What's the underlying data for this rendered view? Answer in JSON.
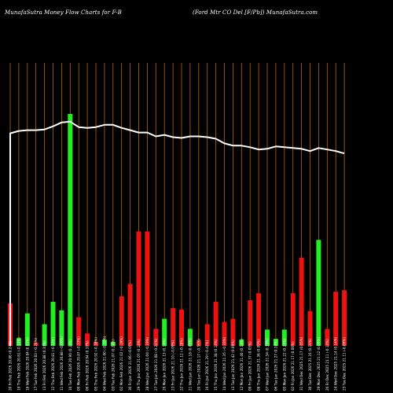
{
  "header": {
    "left_title": "MunafaSutra  Money Flow  Charts for F-B",
    "right_title": "(Ford Mtr CO Del [F/Pb]) MunafaSutra.com"
  },
  "colors": {
    "background": "#000000",
    "grid": "#b8650d",
    "up": "#22ee22",
    "down": "#ee1111",
    "line": "#ffffff"
  },
  "chart_data": {
    "type": "bar",
    "title": "MunafaSutra  Money Flow  Charts for F-B",
    "subtitle": "(Ford Mtr CO Del [F/Pb]) MunafaSutra.com",
    "categories": [
      "20 Fri Feb 2026 20.86 (0.24%)",
      "19 Thu Feb 2026 20.81 (-0.14%)",
      "18 Wed Feb 2026 20.84 (0.05%)",
      "17 Tue Feb 2026 20.83 (-0.24%)",
      "13 Fri Feb 2026 20.88 (0.34%)",
      "12 Thu Feb 2026 20.81 (-0.33%)",
      "11 Wed Feb 2026 20.88 (-0.09%)",
      "10 Tue Feb 2026 20.90 (0.14%)",
      "09 Mon Feb 2026 20.87 (-0.33%)",
      "06 Fri Feb 2026 20.94 (0.10%)",
      "05 Thu Feb 2026 20.92 (-0.38%)",
      "04 Wed Feb 2026 21.00 (-0.33%)",
      "03 Tue Feb 2026 21.07 (0.24%)",
      "02 Mon Feb 2026 21.02 (-0.19%)",
      "30 Fri Jan 2026 21.06 (-0.05%)",
      "29 Thu Jan 2026 21.07 (0.14%)",
      "28 Wed Jan 2026 21.04 (-0.19%)",
      "27 Tue Jan 2026 21.08 (-0.24%)",
      "26 Mon Jan 2026 21.13 (0.14%)",
      "23 Fri Jan 2026 21.10 (-0.09%)",
      "22 Thu Jan 2026 21.12 (-0.28%)",
      "21 Wed Jan 2026 21.18 (0.05%)",
      "20 Tue Jan 2026 21.17 (-0.56%)",
      "16 Fri Jan 2026 21.29 (-0.42%)",
      "15 Thu Jan 2026 21.38 (0.14%)",
      "14 Wed Jan 2026 21.35 (-0.33%)",
      "13 Tue Jan 2026 21.42 (0.09%)",
      "12 Mon Jan 2026 21.40 (0.14%)",
      "09 Fri Jan 2026 21.37 (0.05%)",
      "08 Thu Jan 2026 21.36 (0.09%)",
      "07 Wed Jan 2026 21.34 (0.33%)",
      "06 Tue Jan 2026 21.27 (0.24%)",
      "05 Mon Jan 2026 21.22 (0.24%)",
      "02 Fri Jan 2026 21.17 (0.00%)",
      "31 Wed Dec 2025 21.17 (0.05%)",
      "30 Tue Dec 2025 21.16 (0.19%)",
      "29 Mon Dec 2025 21.12 (0.05%)",
      "26 Fri Dec 2025 21.11 (-0.14%)",
      "24 Wed Dec 2025 21.14 (0.14%)",
      "23 Tue Dec 2025 21.11 (-0.09%)"
    ],
    "values": [
      55,
      10,
      42,
      4,
      28,
      57,
      46,
      300,
      37,
      16,
      5,
      8,
      5,
      64,
      80,
      148,
      148,
      22,
      35,
      49,
      47,
      22,
      7,
      28,
      57,
      31,
      35,
      8,
      59,
      68,
      21,
      9,
      21,
      68,
      114,
      45,
      137,
      22,
      70,
      72
    ],
    "directions": [
      "down",
      "up",
      "up",
      "down",
      "up",
      "up",
      "up",
      "up",
      "down",
      "down",
      "down",
      "up",
      "up",
      "down",
      "down",
      "down",
      "down",
      "down",
      "up",
      "down",
      "down",
      "up",
      "down",
      "down",
      "down",
      "down",
      "down",
      "up",
      "down",
      "down",
      "up",
      "up",
      "up",
      "down",
      "down",
      "down",
      "up",
      "down",
      "down",
      "down"
    ],
    "price_line": [
      275,
      278,
      279,
      279,
      280,
      284,
      289,
      290,
      283,
      282,
      283,
      286,
      286,
      282,
      279,
      276,
      276,
      271,
      273,
      270,
      269,
      271,
      271,
      270,
      268,
      262,
      259,
      259,
      257,
      254,
      255,
      258,
      257,
      256,
      255,
      252,
      256,
      254,
      252,
      249
    ],
    "ylim": [
      0,
      300
    ]
  }
}
